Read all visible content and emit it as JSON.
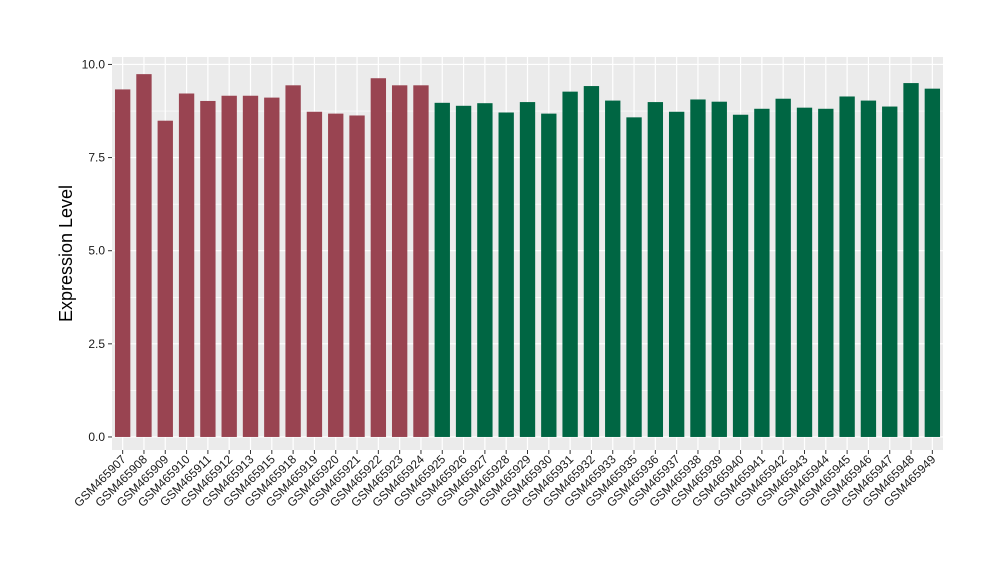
{
  "chart_data": {
    "type": "bar",
    "title": "",
    "xlabel": "",
    "ylabel": "Expression Level",
    "ylim": [
      -0.35,
      10.2
    ],
    "yticks": [
      0.0,
      2.5,
      5.0,
      7.5,
      10.0
    ],
    "ytick_labels": [
      "0.0",
      "2.5",
      "5.0",
      "7.5",
      "10.0"
    ],
    "grid": true,
    "legend": "none",
    "background_color": "#ebebeb",
    "grid_color": "#ffffff",
    "series_colors": [
      "#994451",
      "#006643"
    ],
    "categories": [
      "GSM465907",
      "GSM465908",
      "GSM465909",
      "GSM465910",
      "GSM465911",
      "GSM465912",
      "GSM465913",
      "GSM465915",
      "GSM465918",
      "GSM465919",
      "GSM465920",
      "GSM465921",
      "GSM465922",
      "GSM465923",
      "GSM465924",
      "GSM465925",
      "GSM465926",
      "GSM465927",
      "GSM465928",
      "GSM465929",
      "GSM465930",
      "GSM465931",
      "GSM465932",
      "GSM465933",
      "GSM465935",
      "GSM465936",
      "GSM465937",
      "GSM465938",
      "GSM465939",
      "GSM465940",
      "GSM465941",
      "GSM465942",
      "GSM465943",
      "GSM465944",
      "GSM465945",
      "GSM465946",
      "GSM465947",
      "GSM465948",
      "GSM465949"
    ],
    "values": [
      9.33,
      9.74,
      8.49,
      9.22,
      9.02,
      9.16,
      9.16,
      9.11,
      9.44,
      8.73,
      8.68,
      8.63,
      9.63,
      9.44,
      9.44,
      8.97,
      8.89,
      8.96,
      8.71,
      8.99,
      8.68,
      9.27,
      9.42,
      9.03,
      8.58,
      8.99,
      8.73,
      9.06,
      9.0,
      8.65,
      8.81,
      9.08,
      8.84,
      8.81,
      9.14,
      9.03,
      8.87,
      9.5,
      9.35
    ],
    "groups": [
      0,
      0,
      0,
      0,
      0,
      0,
      0,
      0,
      0,
      0,
      0,
      0,
      0,
      0,
      0,
      1,
      1,
      1,
      1,
      1,
      1,
      1,
      1,
      1,
      1,
      1,
      1,
      1,
      1,
      1,
      1,
      1,
      1,
      1,
      1,
      1,
      1,
      1,
      1
    ]
  }
}
